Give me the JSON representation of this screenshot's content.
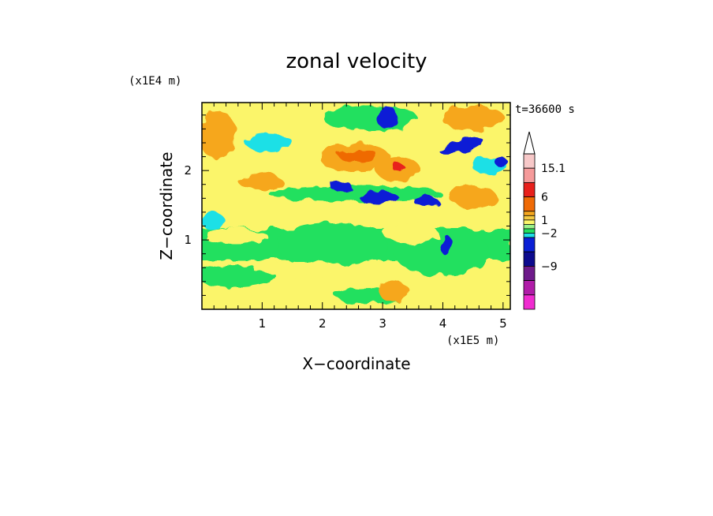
{
  "chart_data": {
    "type": "heatmap",
    "title": "zonal velocity",
    "xlabel": "X−coordinate",
    "ylabel": "Z−coordinate",
    "x_scale_label": "(x1E5 m)",
    "y_scale_label": "(x1E4 m)",
    "time_label": "t=36600 s",
    "xlim": [
      0,
      5.12
    ],
    "ylim": [
      0,
      2.98
    ],
    "x_ticks": [
      "1",
      "2",
      "3",
      "4",
      "5"
    ],
    "y_ticks": [
      "1",
      "2"
    ],
    "colorbar": {
      "labels": [
        "15.1",
        "6",
        "1",
        "−2",
        "−9"
      ],
      "extend": "max-arrow",
      "bands_top_to_bottom": [
        "#f7c8c8",
        "#f59a9a",
        "#e8201c",
        "#ef6a06",
        "#f6a71e",
        "#f4c940",
        "#fbf56a",
        "#9af28a",
        "#23e05e",
        "#1ee0e6",
        "#0a1fd6",
        "#0c0a8e",
        "#6e1a8a",
        "#b01ca8",
        "#f02bd0"
      ]
    },
    "field_description_regions": [
      {
        "x": 0.5,
        "z": 0.4,
        "level": "green"
      },
      {
        "x": 1.5,
        "z": 0.9,
        "level": "yellow"
      },
      {
        "x": 2.3,
        "z": 1.8,
        "level": "blue"
      },
      {
        "x": 2.9,
        "z": 2.7,
        "level": "blue"
      },
      {
        "x": 4.2,
        "z": 2.4,
        "level": "blue"
      },
      {
        "x": 2.8,
        "z": 2.3,
        "level": "orange"
      },
      {
        "x": 0.3,
        "z": 2.5,
        "level": "orange"
      }
    ]
  }
}
